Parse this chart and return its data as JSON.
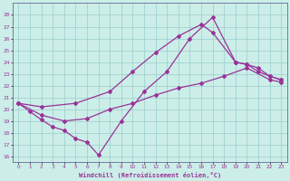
{
  "xlabel": "Windchill (Refroidissement éolien,°C)",
  "bg_color": "#cceee8",
  "grid_color": "#99cccc",
  "line_color": "#993399",
  "xlim": [
    -0.5,
    23.5
  ],
  "ylim": [
    15.5,
    29.0
  ],
  "xticks": [
    0,
    1,
    2,
    3,
    4,
    5,
    6,
    7,
    8,
    9,
    10,
    11,
    12,
    13,
    14,
    15,
    16,
    17,
    18,
    19,
    20,
    21,
    22,
    23
  ],
  "yticks": [
    16,
    17,
    18,
    19,
    20,
    21,
    22,
    23,
    24,
    25,
    26,
    27,
    28
  ],
  "line1_x": [
    0,
    1,
    2,
    3,
    4,
    5,
    6,
    7,
    9,
    11,
    13,
    15,
    17,
    19,
    20,
    21,
    22,
    23
  ],
  "line1_y": [
    20.5,
    19.8,
    19.1,
    18.5,
    18.2,
    17.5,
    17.2,
    16.1,
    19.0,
    21.5,
    23.2,
    26.0,
    27.8,
    24.0,
    23.8,
    23.5,
    22.8,
    22.5
  ],
  "line2_x": [
    0,
    2,
    4,
    6,
    8,
    10,
    12,
    14,
    16,
    18,
    20,
    22,
    23
  ],
  "line2_y": [
    20.5,
    19.5,
    19.0,
    19.2,
    20.0,
    20.5,
    21.2,
    21.8,
    22.2,
    22.8,
    23.5,
    22.5,
    22.3
  ],
  "line3_x": [
    0,
    2,
    5,
    8,
    10,
    12,
    14,
    16,
    17,
    19,
    20,
    21,
    22,
    23
  ],
  "line3_y": [
    20.5,
    20.2,
    20.5,
    21.5,
    23.2,
    24.8,
    26.2,
    27.2,
    26.5,
    24.0,
    23.8,
    23.2,
    22.8,
    22.5
  ]
}
